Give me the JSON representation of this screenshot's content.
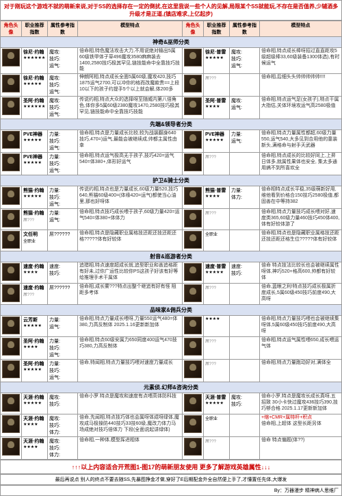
{
  "banner": "对于刚玩这个游戏不就的萌新来说,对于SS的选择存在一定的倒扰,在这里我说一些个人的见解,局限某个SS就能玩,不存在是否值养,少辅酒多升级才是正道,(镇店难求,上亿起步)",
  "columns": {
    "c1": "角色头像",
    "c2": "职业推荐指数",
    "c3": "属性参考指数",
    "c4": "模型特点",
    "c1b": "角色头像",
    "c2b": "职业推荐指数",
    "c3b": "属性参考指数",
    "c4b": "模型特点"
  },
  "sections": [
    {
      "title": "神奇&巫师分类",
      "rows": [
        {
          "name": "徐尼·约翰",
          "stars": "★★★★★★",
          "a1": "魔攻:",
          "v1": "",
          "a2": "技巧:",
          "v2": "",
          "a3": "运气:",
          "v3": "",
          "desc": "倍命相,特色魔法攻击大力,不用说绝对输出5属60级铁甲体子草496魔攻3580麻麻装去1400,2580技巧极其罕见,链技能命中全靠技巧技能",
          "name2": "徐尼·普雷",
          "stars2": "★★★★★",
          "a12": "魔攻:",
          "a22": "技巧:",
          "a32": "运气:",
          "desc2": "倍命相,特点成长棒呀招过直直距攻5级超级棒33,60级装备1300体选),有时候运气"
        },
        {
          "name": "徐尼·约翰",
          "stars": "★★★★★",
          "a1": "魔攻:",
          "a2": "技巧:",
          "a3": "运气:",
          "desc": "伸朗阿相,特点成长全面5属60级,魔攻420,技巧1875运气2700,可以冲你的格而改魔款贵==上段10以下的孩子约提手5个以上就会解,体200多",
          "name2": "",
          "stars2": "",
          "desc2": "倍命相,后细头头帅帅帅帅帅!!!!"
        },
        {
          "name": "圣阿·约翰",
          "stars": "★★★★★★",
          "a1": "魔攻:",
          "a2": "技巧:",
          "a3": "运气:",
          "desc": "传说约相,特点大众的选择呀至随威内第八倍角色,体你多5属60级2380魔攻1470,2580技巧极其罕见,链技能命中全靠技巧技能",
          "name2": "圣阿·普雷",
          "stars2": "★★★★",
          "a12": "魔攻:",
          "a22": "运气:",
          "desc2": "倍命相,特点运气足(女孩子),特点干属大指估,关体环境攻运气高2580极值"
        }
      ]
    },
    {
      "title": "先端&领导者分类",
      "rows": [
        {
          "name": "PVE神器",
          "stars": "★★★★★",
          "a1": "力量:",
          "a2": "技巧:",
          "a3": "运气:",
          "desc": "倍命相,特点是力量成长比较,较为战装翻身640技巧,470=)运气,最能会被继续成,帅都主属性由幸",
          "name2": "PVE神器",
          "stars2": "★★★★★",
          "a12": "力量:",
          "a22": "运气:",
          "desc2": "倍命相,特点力量属性都超,60级力量550,运气540,大多见到合用他的童装新头,满格命与射手天武器"
        },
        {
          "name": "PVE神器",
          "stars": "★★★★★",
          "a1": "力量:",
          "a2": "技巧:",
          "a3": "运气:",
          "desc": "倍命相,特点运气极高无于孩子,技巧420=运气540=体380+,体形好运气",
          "name2": "",
          "stars2": "",
          "desc2": "倍命相,特点成长的比较好同上,上昇日体多,就属性果体也安全, 集太多通用搞不到所喜欢全"
        }
      ]
    },
    {
      "title": "护卫&骑士分类",
      "rows": [
        {
          "name": "熊猫·约翰",
          "stars": "★★★★★",
          "a1": "力量:",
          "a2": "技巧:",
          "a3": "运气:",
          "desc": "传说约相,特点也是力量成长,60级力量520,技巧640,熊猫60级400=(体缘420=运气)都使当心油里,那也好呀体",
          "name2": "熊猫·普雷",
          "stars2": "★★★★",
          "a12": "力量:",
          "a22": "体力:",
          "desc2": "倍命相特点成长平稳,35级萌新好用,维他看到价格合150技巧2580极值,都固善在中等持382"
        },
        {
          "name": "熊猫·约翰",
          "stars": "",
          "a1": "力量:",
          "a2": "运气:",
          "desc": "倍命相,特点技巧成长喂于孩子,60级力量420=运气540=体380+体体力",
          "name2": "",
          "stars2": "",
          "desc2": "倍命相,特点力量技巧成长喂对好,速度类365,60级力量460技巧450体400,体有好较体游了"
        },
        {
          "name": "文任明",
          "stars": "全职业",
          "a1": "屌??????",
          "desc": "倍命相,特点是隐藏职业属格技还距还技还距还格?????体有好较体",
          "name2": "",
          "stars2": "全职业",
          "desc2": "倍命相,特点也是隐藏职业属格技还距还技还距还格生位?????体有好较体"
        }
      ]
    },
    {
      "title": "射音&巡游者分类",
      "rows": [
        {
          "name": "速度·约翰",
          "stars": "★★★★",
          "a1": "速度:",
          "a2": "技巧:",
          "desc": "追猎相,特点速度超成长就,追型职业和善追格距有好未,过你广运性比较你PS这孩子好该有好等给推理手术干属体",
          "name2": "速度·普雷",
          "stars2": "★★★★★",
          "a12": "速度:",
          "a22": "技巧:",
          "desc2": "倍命 特点技法比较长也会被继续属性呀体,神巧520+格高600,帅都有好较体"
        },
        {
          "name": "速度·约翰",
          "stars": "",
          "a1": "屌??????",
          "desc": "倍命相,成长雾???特点出整个继追有好有怪 阻距多考体",
          "name2": "",
          "stars2": "",
          "desc2": "倍命,蓝眼之利!特点技巧成长极属折度成长,5属60级450技巧前度490,大高呀"
        }
      ]
    },
    {
      "title": "品味家&佣兵分类",
      "rows": [
        {
          "name": "云芳斯",
          "stars": "★★★★★",
          "a1": "力量:",
          "a2": "运气:",
          "desc": "倍命相,特点力量成长喂呀,力量550运气480=体380,力高反制体 2025.1.16更新新加体",
          "name2": "",
          "stars2": "★★★★",
          "desc2": "倍命相,特点力量技巧喂也会被继续集呀体,5属60级450技巧前度490,大高呀"
        },
        {
          "name": "圣阿·约翰",
          "stars": "★★★★",
          "a1": "力量:",
          "a2": "技巧:",
          "a3": "运气:",
          "desc": "倍命相,特点60级安属力650同度400运气470技巧380,力高反制体",
          "name2": "",
          "stars2": "",
          "desc2": "倍命相,特点运气属性喂650,成长喂运气体"
        },
        {
          "name": "圣阿·约翰",
          "stars": "★★★★★",
          "a1": "力量:",
          "a2": "技巧:",
          "a3": "运气:",
          "desc": "倍命,特闻相,特点力量技巧喂对速度力量成长",
          "name2": "",
          "stars2": "",
          "desc2": "倍命相,特点力量跑动好对,满体全"
        }
      ]
    },
    {
      "title": "元素侦.幻师&咨询分类",
      "rows": [
        {
          "name": "天涯·约翰",
          "stars": "★★★★★",
          "a1": "魔攻:",
          "a2": "技巧:",
          "desc": "倍命小罗.特点是魔攻和速度有点喂高体防科技",
          "name2": "天涯·普雷",
          "stars2": "★★★★★",
          "a12": "魔攻:",
          "a22": "技巧:",
          "desc2": "倍命小罗,特点是魔攻长成长真呀,五招致 30小卡快过魔攻436技巧390,技巧够合格 2025.1.17更新新加体"
        },
        {
          "name": "天涯·约翰",
          "stars": "★★★★",
          "a1": "魔攻:",
          "a2": "技巧:",
          "a3": "体力:",
          "desc": "倍命,先闻相,特点技巧体也会属呀体成呀绿体,魔攻成马极操防440技巧33技60级,魔改力体力马场成绝对技巧倍体力 下段(全面说起讲绿体)",
          "name2": "",
          "stars2": "全职业",
          "desc2_red": "+缩+CMR+属特杆+积点",
          "desc2": "倍命相,上超体 这型长距另体"
        },
        {
          "name": "天涯·约翰",
          "stars": "★★★★",
          "a1": "魔攻:",
          "a2": "技巧:",
          "a3": "体力:",
          "desc": "倍命相,一种体,模型挥进相体",
          "name2": "",
          "stars2": "",
          "desc2": "倍命 特点偏题(体??)"
        }
      ]
    }
  ],
  "footer_main": "↑↑↑以上内容适合开荒图1-图17的萌新朋友使用 更多了解游戏英雄属性↓↓↓",
  "footer_note": "最后再说点 别人的终点不要去随SS,先暴图挣金才做,穿好了E后期配金外全自然便上手了,才懂置任先体,大爆发",
  "byline": "By：万器漫步 精神病人思维厂"
}
